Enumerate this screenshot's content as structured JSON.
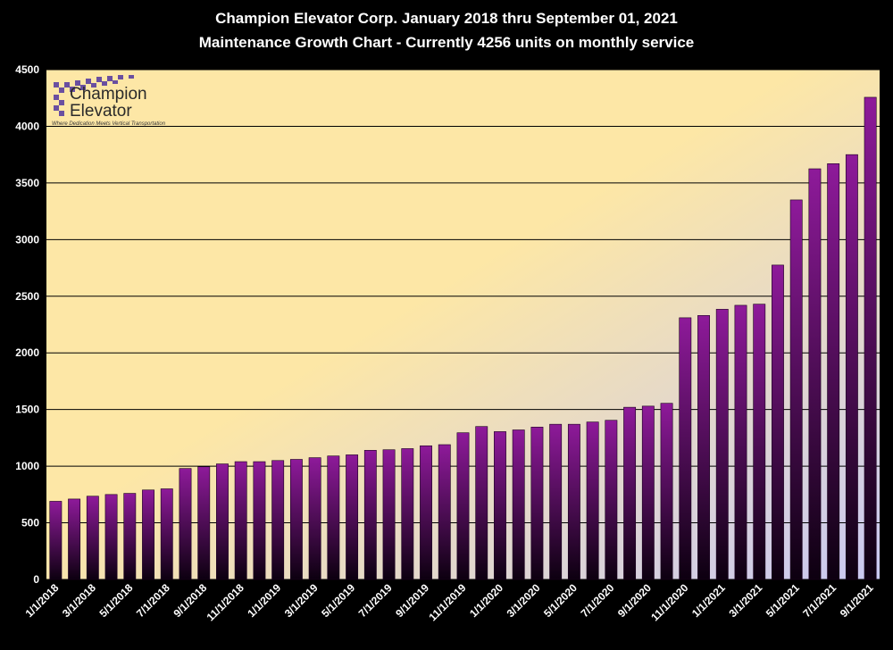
{
  "title_line1": "Champion Elevator  Corp.  January 2018 thru September 01, 2021",
  "title_line2": "Maintenance Growth Chart - Currently 4256 units on monthly service",
  "logo": {
    "line1": "Champion",
    "line2": "Elevator",
    "tagline": "Where Dedication Meets Vertical Transportation"
  },
  "colors": {
    "background": "#000000",
    "plot_gradient_start": "#fde7a6",
    "plot_gradient_end": "#c9c8f2",
    "bar_top": "#8e1a9a",
    "bar_bottom": "#0d0010",
    "gridline": "#000000",
    "text": "#ffffff"
  },
  "chart_data": {
    "type": "bar",
    "title": "Champion Elevator  Corp.  January 2018 thru September 01, 2021",
    "subtitle": "Maintenance Growth Chart - Currently 4256 units on monthly service",
    "xlabel": "",
    "ylabel": "",
    "ylim": [
      0,
      4500
    ],
    "yticks": [
      0,
      500,
      1000,
      1500,
      2000,
      2500,
      3000,
      3500,
      4000,
      4500
    ],
    "grid": true,
    "legend": "none",
    "categories": [
      "1/1/2018",
      "2/1/2018",
      "3/1/2018",
      "4/1/2018",
      "5/1/2018",
      "6/1/2018",
      "7/1/2018",
      "8/1/2018",
      "9/1/2018",
      "10/1/2018",
      "11/1/2018",
      "12/1/2018",
      "1/1/2019",
      "2/1/2019",
      "3/1/2019",
      "4/1/2019",
      "5/1/2019",
      "6/1/2019",
      "7/1/2019",
      "8/1/2019",
      "9/1/2019",
      "10/1/2019",
      "11/1/2019",
      "12/1/2019",
      "1/1/2020",
      "2/1/2020",
      "3/1/2020",
      "4/1/2020",
      "5/1/2020",
      "6/1/2020",
      "7/1/2020",
      "8/1/2020",
      "9/1/2020",
      "10/1/2020",
      "11/1/2020",
      "12/1/2020",
      "1/1/2021",
      "2/1/2021",
      "3/1/2021",
      "4/1/2021",
      "5/1/2021",
      "6/1/2021",
      "7/1/2021",
      "8/1/2021",
      "9/1/2021"
    ],
    "tick_labels": [
      "1/1/2018",
      "",
      "3/1/2018",
      "",
      "5/1/2018",
      "",
      "7/1/2018",
      "",
      "9/1/2018",
      "",
      "11/1/2018",
      "",
      "1/1/2019",
      "",
      "3/1/2019",
      "",
      "5/1/2019",
      "",
      "7/1/2019",
      "",
      "9/1/2019",
      "",
      "11/1/2019",
      "",
      "1/1/2020",
      "",
      "3/1/2020",
      "",
      "5/1/2020",
      "",
      "7/1/2020",
      "",
      "9/1/2020",
      "",
      "11/1/2020",
      "",
      "1/1/2021",
      "",
      "3/1/2021",
      "",
      "5/1/2021",
      "",
      "7/1/2021",
      "",
      "9/1/2021"
    ],
    "values": [
      690,
      710,
      735,
      750,
      760,
      790,
      800,
      980,
      995,
      1020,
      1040,
      1040,
      1050,
      1060,
      1075,
      1090,
      1100,
      1140,
      1145,
      1155,
      1180,
      1190,
      1295,
      1350,
      1305,
      1320,
      1345,
      1370,
      1370,
      1390,
      1405,
      1520,
      1530,
      1555,
      2310,
      2330,
      2385,
      2420,
      2430,
      2775,
      3350,
      3625,
      3670,
      3750,
      4256
    ]
  }
}
